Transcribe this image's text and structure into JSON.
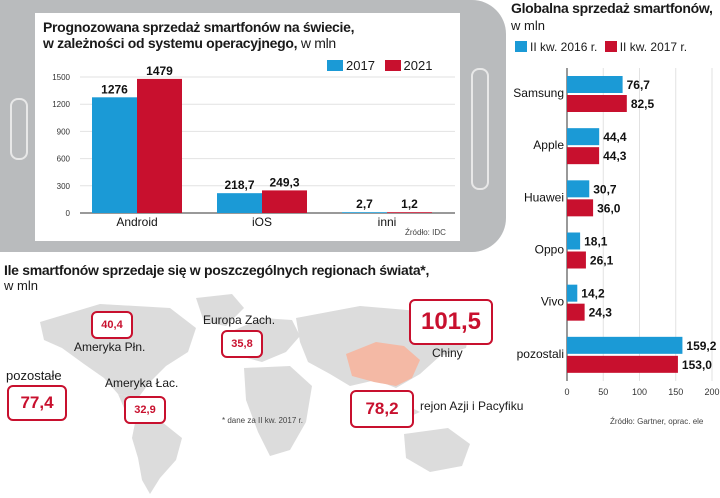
{
  "colors": {
    "blue": "#1b9ad6",
    "red": "#c8102e",
    "phone": "#b9bbbd",
    "map": "#dcdcdc",
    "china": "#f4b9a5"
  },
  "chart_data": [
    {
      "type": "bar",
      "title": "Prognozowana sprzedaż smartfonów na świecie, w zależności od systemu operacyjnego,",
      "title_line1": "Prognozowana sprzedaż smartfonów na świecie,",
      "title_line2": "w zależności od systemu operacyjnego,",
      "unit": "w mln",
      "categories": [
        "Android",
        "iOS",
        "inni"
      ],
      "series": [
        {
          "name": "2017",
          "values": [
            1276,
            218.7,
            2.7
          ],
          "labels": [
            "1276",
            "218,7",
            "2,7"
          ],
          "color": "#1b9ad6"
        },
        {
          "name": "2021",
          "values": [
            1479,
            249.3,
            1.2
          ],
          "labels": [
            "1479",
            "249,3",
            "1,2"
          ],
          "color": "#c8102e"
        }
      ],
      "ylim": [
        0,
        1500
      ],
      "yticks": [
        "0",
        "300",
        "600",
        "900",
        "1200",
        "1500"
      ],
      "ytick_values": [
        0,
        300,
        600,
        900,
        1200,
        1500
      ],
      "source": "Źródło: IDC"
    },
    {
      "type": "bar",
      "orientation": "horizontal",
      "title": "Globalna sprzedaż smartfonów,",
      "unit": "w mln",
      "categories": [
        "Samsung",
        "Apple",
        "Huawei",
        "Oppo",
        "Vivo",
        "pozostali"
      ],
      "series": [
        {
          "name": "II kw. 2016 r.",
          "values": [
            76.7,
            44.4,
            30.7,
            18.1,
            14.2,
            159.2
          ],
          "labels": [
            "76,7",
            "44,4",
            "30,7",
            "18,1",
            "14,2",
            "159,2"
          ],
          "color": "#1b9ad6"
        },
        {
          "name": "II kw. 2017 r.",
          "values": [
            82.5,
            44.3,
            36.0,
            26.1,
            24.3,
            153.0
          ],
          "labels": [
            "82,5",
            "44,3",
            "36,0",
            "26,1",
            "24,3",
            "153,0"
          ],
          "color": "#c8102e"
        }
      ],
      "xlim": [
        0,
        200
      ],
      "xticks": [
        "0",
        "50",
        "100",
        "150",
        "200"
      ],
      "xtick_values": [
        0,
        50,
        100,
        150,
        200
      ],
      "source": "Źródło: Gartner, oprac. ele"
    }
  ],
  "regions": {
    "title": "Ile smartfonów sprzedaje się w poszczególnych regionach świata*,",
    "unit": "w mln",
    "note": "* dane za II kw. 2017 r.",
    "items": [
      {
        "name": "Ameryka Płn.",
        "value": "40,4"
      },
      {
        "name": "Europa Zach.",
        "value": "35,8"
      },
      {
        "name": "Chiny",
        "value": "101,5"
      },
      {
        "name": "pozostałe",
        "value": "77,4"
      },
      {
        "name": "Ameryka Łac.",
        "value": "32,9"
      },
      {
        "name": "rejon Azji i Pacyfiku",
        "value": "78,2"
      }
    ]
  }
}
